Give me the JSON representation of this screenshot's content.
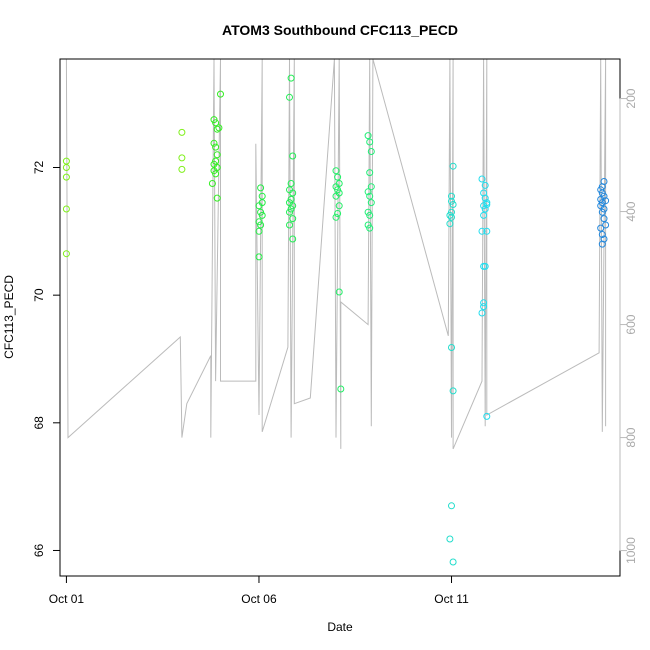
{
  "chart_data": {
    "type": "scatter",
    "title": "ATOM3 Southbound CFC113_PECD",
    "xlabel": "Date",
    "ylabel": "CFC113_PECD",
    "xlim": [
      "2017-09-30T20:00",
      "2017-10-15T09:00"
    ],
    "ylim": [
      65.6,
      73.7
    ],
    "x_ticks": [
      {
        "value": "2017-10-01",
        "label": "Oct 01"
      },
      {
        "value": "2017-10-06",
        "label": "Oct 06"
      },
      {
        "value": "2017-10-11",
        "label": "Oct 11"
      }
    ],
    "y_ticks": [
      66,
      68,
      70,
      72
    ],
    "secondary_axis": {
      "label": "",
      "color": "#bbbbbb",
      "reversed": true,
      "lim": [
        130,
        1045
      ],
      "ticks": [
        200,
        400,
        600,
        800,
        1000
      ]
    },
    "grid": false,
    "series": [
      {
        "color": "#7ff01a",
        "points": [
          [
            "2017-10-01T00:00",
            72.1
          ],
          [
            "2017-10-01T00:00",
            72.0
          ],
          [
            "2017-10-01T00:00",
            71.85
          ],
          [
            "2017-10-01T00:00",
            71.35
          ],
          [
            "2017-10-01T00:00",
            70.65
          ],
          [
            "2017-10-04T00:00",
            72.55
          ],
          [
            "2017-10-04T00:00",
            72.15
          ],
          [
            "2017-10-04T00:00",
            71.97
          ]
        ]
      },
      {
        "color": "#33ee22",
        "points": [
          [
            "2017-10-04T20:00",
            72.75
          ],
          [
            "2017-10-04T21:00",
            72.7
          ],
          [
            "2017-10-04T22:00",
            72.6
          ],
          [
            "2017-10-04T20:00",
            72.38
          ],
          [
            "2017-10-04T21:00",
            72.32
          ],
          [
            "2017-10-04T22:00",
            72.2
          ],
          [
            "2017-10-04T20:00",
            72.05
          ],
          [
            "2017-10-04T21:00",
            72.1
          ],
          [
            "2017-10-04T22:00",
            72.0
          ],
          [
            "2017-10-04T20:00",
            71.95
          ],
          [
            "2017-10-04T21:00",
            71.9
          ],
          [
            "2017-10-04T19:00",
            71.75
          ],
          [
            "2017-10-04T22:00",
            71.52
          ],
          [
            "2017-10-05T00:00",
            73.15
          ],
          [
            "2017-10-04T23:00",
            72.62
          ]
        ]
      },
      {
        "color": "#22ee44",
        "points": [
          [
            "2017-10-06T01:00",
            71.68
          ],
          [
            "2017-10-06T02:00",
            71.55
          ],
          [
            "2017-10-06T00:00",
            71.4
          ],
          [
            "2017-10-06T01:00",
            71.3
          ],
          [
            "2017-10-06T02:00",
            71.25
          ],
          [
            "2017-10-06T00:00",
            71.15
          ],
          [
            "2017-10-06T01:00",
            71.1
          ],
          [
            "2017-10-06T00:00",
            71.0
          ],
          [
            "2017-10-06T02:00",
            71.45
          ],
          [
            "2017-10-06T00:00",
            70.6
          ]
        ]
      },
      {
        "color": "#22ee55",
        "points": [
          [
            "2017-10-06T20:00",
            73.4
          ],
          [
            "2017-10-06T19:00",
            73.1
          ],
          [
            "2017-10-06T21:00",
            72.18
          ],
          [
            "2017-10-06T20:00",
            71.75
          ],
          [
            "2017-10-06T19:00",
            71.65
          ],
          [
            "2017-10-06T21:00",
            71.6
          ],
          [
            "2017-10-06T20:00",
            71.5
          ],
          [
            "2017-10-06T19:00",
            71.45
          ],
          [
            "2017-10-06T21:00",
            71.4
          ],
          [
            "2017-10-06T20:00",
            71.35
          ],
          [
            "2017-10-06T19:00",
            71.3
          ],
          [
            "2017-10-06T21:00",
            71.2
          ],
          [
            "2017-10-06T19:00",
            71.1
          ],
          [
            "2017-10-06T21:00",
            70.88
          ]
        ]
      },
      {
        "color": "#22ee66",
        "points": [
          [
            "2017-10-08T00:00",
            71.95
          ],
          [
            "2017-10-08T01:00",
            71.85
          ],
          [
            "2017-10-08T02:00",
            71.75
          ],
          [
            "2017-10-08T00:00",
            71.7
          ],
          [
            "2017-10-08T01:00",
            71.65
          ],
          [
            "2017-10-08T02:00",
            71.6
          ],
          [
            "2017-10-08T00:00",
            71.55
          ],
          [
            "2017-10-08T02:00",
            71.4
          ],
          [
            "2017-10-08T01:00",
            71.28
          ],
          [
            "2017-10-08T00:00",
            71.22
          ],
          [
            "2017-10-08T02:00",
            70.05
          ],
          [
            "2017-10-08T03:00",
            68.53
          ]
        ]
      },
      {
        "color": "#22ee77",
        "points": [
          [
            "2017-10-08T20:00",
            72.5
          ],
          [
            "2017-10-08T21:00",
            72.4
          ],
          [
            "2017-10-08T22:00",
            72.25
          ],
          [
            "2017-10-08T21:00",
            71.92
          ],
          [
            "2017-10-08T22:00",
            71.7
          ],
          [
            "2017-10-08T20:00",
            71.62
          ],
          [
            "2017-10-08T21:00",
            71.55
          ],
          [
            "2017-10-08T22:00",
            71.45
          ],
          [
            "2017-10-08T20:00",
            71.3
          ],
          [
            "2017-10-08T21:00",
            71.25
          ],
          [
            "2017-10-08T20:00",
            71.1
          ],
          [
            "2017-10-08T21:00",
            71.05
          ]
        ]
      },
      {
        "color": "#22ddcc",
        "points": [
          [
            "2017-10-11T01:00",
            72.02
          ],
          [
            "2017-10-11T00:00",
            71.55
          ],
          [
            "2017-10-11T00:00",
            71.47
          ],
          [
            "2017-10-11T01:00",
            71.42
          ],
          [
            "2017-10-11T00:00",
            71.3
          ],
          [
            "2017-10-10T23:00",
            71.25
          ],
          [
            "2017-10-11T00:00",
            71.22
          ],
          [
            "2017-10-10T23:00",
            71.12
          ],
          [
            "2017-10-11T00:00",
            69.18
          ],
          [
            "2017-10-11T01:00",
            68.5
          ],
          [
            "2017-10-11T00:00",
            66.7
          ],
          [
            "2017-10-10T23:00",
            66.18
          ],
          [
            "2017-10-11T01:00",
            65.82
          ]
        ]
      },
      {
        "color": "#22ddee",
        "points": [
          [
            "2017-10-11T19:00",
            71.82
          ],
          [
            "2017-10-11T21:00",
            71.72
          ],
          [
            "2017-10-11T20:00",
            71.6
          ],
          [
            "2017-10-11T21:00",
            71.52
          ],
          [
            "2017-10-11T22:00",
            71.45
          ],
          [
            "2017-10-11T20:00",
            71.4
          ],
          [
            "2017-10-11T21:00",
            71.35
          ],
          [
            "2017-10-11T22:00",
            71.42
          ],
          [
            "2017-10-11T20:00",
            71.25
          ],
          [
            "2017-10-11T19:00",
            71.0
          ],
          [
            "2017-10-11T22:00",
            71.0
          ],
          [
            "2017-10-11T20:00",
            70.45
          ],
          [
            "2017-10-11T21:00",
            70.45
          ],
          [
            "2017-10-11T20:00",
            69.88
          ],
          [
            "2017-10-11T20:00",
            69.82
          ],
          [
            "2017-10-11T19:00",
            69.72
          ],
          [
            "2017-10-11T22:00",
            68.1
          ]
        ]
      },
      {
        "color": "#2288dd",
        "points": [
          [
            "2017-10-14T23:00",
            71.78
          ],
          [
            "2017-10-14T22:00",
            71.7
          ],
          [
            "2017-10-14T21:00",
            71.65
          ],
          [
            "2017-10-14T22:00",
            71.6
          ],
          [
            "2017-10-14T23:00",
            71.55
          ],
          [
            "2017-10-14T21:00",
            71.5
          ],
          [
            "2017-10-14T22:00",
            71.45
          ],
          [
            "2017-10-15T00:00",
            71.48
          ],
          [
            "2017-10-14T23:00",
            71.35
          ],
          [
            "2017-10-14T21:00",
            71.4
          ],
          [
            "2017-10-14T22:00",
            71.3
          ],
          [
            "2017-10-14T23:00",
            71.2
          ],
          [
            "2017-10-15T00:00",
            71.1
          ],
          [
            "2017-10-14T21:00",
            71.05
          ],
          [
            "2017-10-14T22:00",
            70.95
          ],
          [
            "2017-10-14T23:00",
            70.88
          ],
          [
            "2017-10-14T22:00",
            70.8
          ]
        ]
      }
    ],
    "altitude_track": {
      "color": "#bbbbbb",
      "points": [
        [
          "2017-10-01T00:00",
          130
        ],
        [
          "2017-10-01T01:00",
          800
        ],
        [
          "2017-10-03T23:00",
          622
        ],
        [
          "2017-10-04T00:00",
          800
        ],
        [
          "2017-10-04T03:00",
          740
        ],
        [
          "2017-10-04T18:00",
          655
        ],
        [
          "2017-10-04T18:00",
          800
        ],
        [
          "2017-10-04T20:00",
          130
        ],
        [
          "2017-10-04T21:00",
          700
        ],
        [
          "2017-10-05T00:00",
          130
        ],
        [
          "2017-10-05T00:00",
          700
        ],
        [
          "2017-10-05T22:00",
          700
        ],
        [
          "2017-10-05T22:00",
          280
        ],
        [
          "2017-10-06T00:00",
          760
        ],
        [
          "2017-10-06T02:00",
          130
        ],
        [
          "2017-10-06T02:00",
          790
        ],
        [
          "2017-10-06T18:00",
          640
        ],
        [
          "2017-10-06T19:00",
          130
        ],
        [
          "2017-10-06T20:00",
          800
        ],
        [
          "2017-10-06T22:00",
          130
        ],
        [
          "2017-10-06T22:00",
          740
        ],
        [
          "2017-10-07T08:00",
          730
        ],
        [
          "2017-10-07T23:00",
          130
        ],
        [
          "2017-10-08T00:00",
          800
        ],
        [
          "2017-10-08T02:00",
          130
        ],
        [
          "2017-10-08T03:00",
          820
        ],
        [
          "2017-10-08T03:00",
          560
        ],
        [
          "2017-10-08T20:00",
          600
        ],
        [
          "2017-10-08T21:00",
          130
        ],
        [
          "2017-10-08T22:00",
          780
        ],
        [
          "2017-10-08T23:00",
          130
        ],
        [
          "2017-10-10T22:00",
          620
        ],
        [
          "2017-10-10T23:00",
          130
        ],
        [
          "2017-10-11T00:00",
          800
        ],
        [
          "2017-10-11T01:00",
          130
        ],
        [
          "2017-10-11T01:00",
          820
        ],
        [
          "2017-10-11T19:00",
          700
        ],
        [
          "2017-10-11T20:00",
          130
        ],
        [
          "2017-10-11T21:00",
          780
        ],
        [
          "2017-10-11T22:00",
          130
        ],
        [
          "2017-10-11T22:00",
          760
        ],
        [
          "2017-10-14T20:00",
          650
        ],
        [
          "2017-10-14T21:00",
          130
        ],
        [
          "2017-10-14T22:00",
          790
        ],
        [
          "2017-10-15T00:00",
          130
        ],
        [
          "2017-10-15T00:00",
          780
        ]
      ]
    }
  }
}
